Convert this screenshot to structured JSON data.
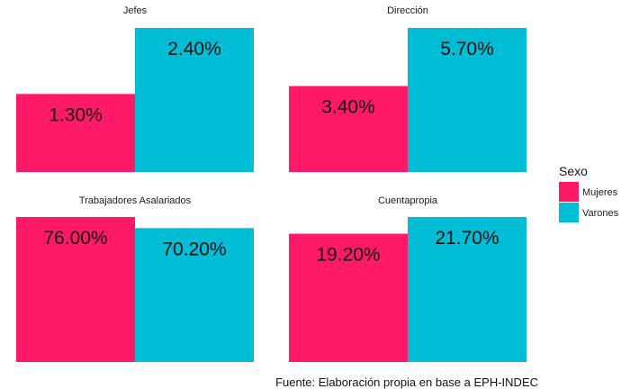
{
  "chart_data": {
    "type": "bar",
    "grid": false,
    "legend_position": "right",
    "legend": {
      "title": "Sexo",
      "entries": [
        {
          "name": "Mujeres",
          "color": "#FF1966"
        },
        {
          "name": "Varones",
          "color": "#00BCD4"
        }
      ]
    },
    "caption": "Fuente: Elaboración propia en base a EPH-INDEC",
    "facets": [
      {
        "title": "Jefes",
        "values": [
          1.3,
          2.4
        ],
        "labels": [
          "1.30%",
          "2.40%"
        ],
        "ylim": [
          0,
          2.4
        ]
      },
      {
        "title": "Dirección",
        "values": [
          3.4,
          5.7
        ],
        "labels": [
          "3.40%",
          "5.70%"
        ],
        "ylim": [
          0,
          5.7
        ]
      },
      {
        "title": "Trabajadores Asalariados",
        "values": [
          76.0,
          70.2
        ],
        "labels": [
          "76.00%",
          "70.20%"
        ],
        "ylim": [
          0,
          76.0
        ]
      },
      {
        "title": "Cuentapropia",
        "values": [
          19.2,
          21.7
        ],
        "labels": [
          "19.20%",
          "21.70%"
        ],
        "ylim": [
          0,
          21.7
        ]
      }
    ]
  }
}
